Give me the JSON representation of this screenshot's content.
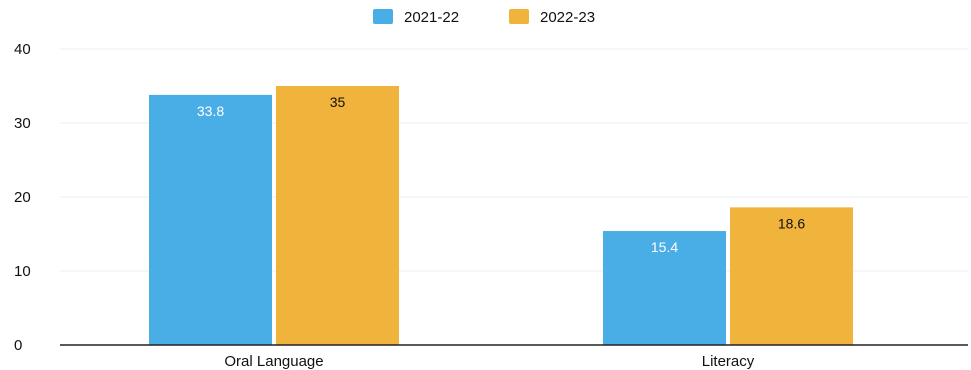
{
  "chart_data": {
    "type": "bar",
    "categories": [
      "Oral Language",
      "Literacy"
    ],
    "series": [
      {
        "name": "2021-22",
        "values": [
          33.8,
          15.4
        ],
        "color": "#4aaee6",
        "label_color": "#ffffff"
      },
      {
        "name": "2022-23",
        "values": [
          35,
          18.6
        ],
        "color": "#f0b43c",
        "label_color": "#111111"
      }
    ],
    "ylim": [
      0,
      40
    ],
    "yticks": [
      0,
      10,
      20,
      30,
      40
    ],
    "grid": true,
    "legend_position": "top-center",
    "title": "",
    "xlabel": "",
    "ylabel": ""
  }
}
